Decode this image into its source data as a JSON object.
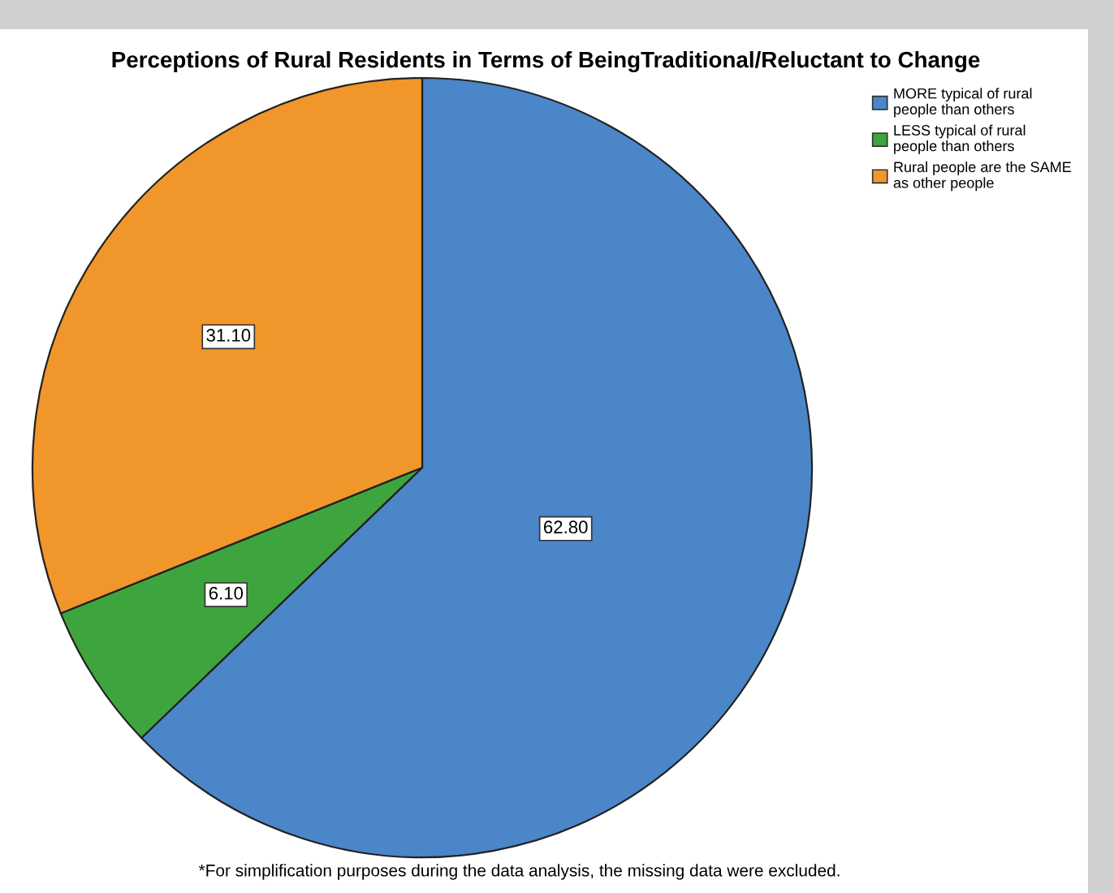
{
  "chart_data": {
    "type": "pie",
    "title": "Perceptions of Rural Residents in Terms of BeingTraditional/Reluctant to Change",
    "categories": [
      "MORE typical of rural people than others",
      "LESS typical of rural people than others",
      "Rural people are the SAME as other people"
    ],
    "values": [
      62.8,
      6.1,
      31.1
    ],
    "value_labels": [
      "62.80",
      "6.10",
      "31.10"
    ],
    "colors": [
      "#4a86c8",
      "#3ea53e",
      "#f0962a"
    ],
    "legend": "top right",
    "annotations": [
      "*For simplification purposes during the data analysis, the missing data were excluded."
    ]
  }
}
